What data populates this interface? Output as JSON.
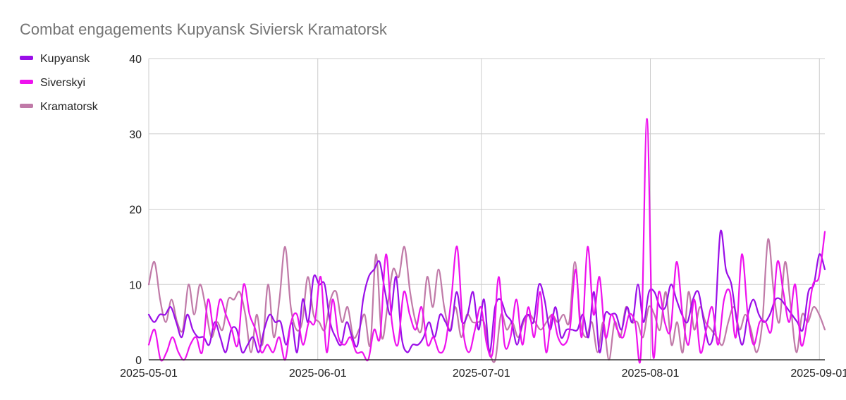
{
  "chart_data": {
    "type": "line",
    "title": "Combat engagements  Kupyansk Siviersk Kramatorsk",
    "xlabel": "",
    "ylabel": "",
    "x_start": "2025-05-01",
    "x_end": "2025-09-02",
    "xticks": [
      "2025-05-01",
      "2025-06-01",
      "2025-07-01",
      "2025-08-01",
      "2025-09-01"
    ],
    "ylim": [
      0,
      40
    ],
    "yticks": [
      0,
      10,
      20,
      30,
      40
    ],
    "grid": true,
    "legend": "top-left",
    "series": [
      {
        "name": "Kupyansk",
        "color": "#9a0ee8",
        "values": [
          6,
          5,
          6,
          6,
          7,
          5,
          3,
          6,
          4,
          3,
          3,
          2,
          5,
          3,
          1,
          4,
          4,
          1,
          2,
          3,
          1,
          4,
          6,
          5,
          5,
          2,
          5,
          1,
          8,
          5,
          11,
          10,
          10,
          5,
          3,
          2,
          5,
          3,
          2,
          8,
          11,
          12,
          13,
          9,
          6,
          11,
          3,
          1,
          2,
          2,
          3,
          5,
          3,
          6,
          5,
          4,
          9,
          5,
          6,
          9,
          4,
          8,
          1,
          7,
          8,
          6,
          5,
          2,
          5,
          6,
          5,
          10,
          8,
          4,
          7,
          3,
          4,
          4,
          4,
          6,
          3,
          9,
          1,
          6,
          6,
          6,
          4,
          7,
          5,
          10,
          5,
          9,
          9,
          7,
          7,
          10,
          8,
          6,
          5,
          8,
          9,
          5,
          2,
          5,
          17,
          12,
          10,
          5,
          2,
          6,
          8,
          6,
          5,
          6,
          8,
          8,
          7,
          6,
          5,
          4,
          9,
          10,
          14,
          12
        ]
      },
      {
        "name": "Siverskyi",
        "color": "#ee12ee",
        "values": [
          2,
          4,
          0,
          1,
          3,
          1,
          0,
          2,
          3,
          1,
          8,
          4,
          8,
          6,
          4,
          2,
          10,
          6,
          4,
          1,
          2,
          1,
          3,
          0,
          5,
          6,
          2,
          5,
          5,
          11,
          1,
          8,
          3,
          2,
          3,
          1,
          1,
          0,
          4,
          3,
          14,
          5,
          2,
          9,
          6,
          4,
          7,
          2,
          3,
          1,
          2,
          8,
          15,
          4,
          1,
          4,
          7,
          2,
          1,
          11,
          2,
          3,
          8,
          2,
          7,
          3,
          9,
          1,
          6,
          3,
          2,
          4,
          12,
          3,
          15,
          6,
          11,
          3,
          6,
          4,
          3,
          6,
          5,
          1,
          32,
          1,
          9,
          5,
          4,
          13,
          6,
          2,
          8,
          1,
          4,
          7,
          2,
          8,
          9,
          3,
          14,
          6,
          2,
          5,
          5,
          4,
          13,
          9,
          5,
          10,
          2,
          5,
          10,
          11,
          17
        ]
      },
      {
        "name": "Kramatorsk",
        "color": "#c07aa8",
        "values": [
          10,
          13,
          8,
          5,
          8,
          5,
          4,
          10,
          6,
          10,
          7,
          3,
          5,
          4,
          8,
          8,
          9,
          6,
          1,
          6,
          2,
          10,
          3,
          8,
          15,
          7,
          4,
          5,
          11,
          6,
          5,
          4,
          8,
          9,
          5,
          7,
          3,
          4,
          6,
          2,
          14,
          3,
          7,
          12,
          11,
          15,
          9,
          5,
          4,
          11,
          7,
          12,
          7,
          4,
          7,
          3,
          6,
          5,
          5,
          5,
          1,
          0,
          6,
          4,
          5,
          3,
          5,
          6,
          5,
          4,
          5,
          6,
          5,
          6,
          5,
          13,
          5,
          3,
          5,
          1,
          5,
          0,
          5,
          3,
          7,
          5,
          5,
          3,
          7,
          6,
          4,
          9,
          2,
          5,
          1,
          9,
          4,
          7,
          5,
          4,
          3,
          2,
          5,
          7,
          4,
          6,
          4,
          1,
          5,
          16,
          9,
          5,
          13,
          7,
          1,
          6,
          5,
          7,
          6,
          4
        ]
      }
    ]
  }
}
